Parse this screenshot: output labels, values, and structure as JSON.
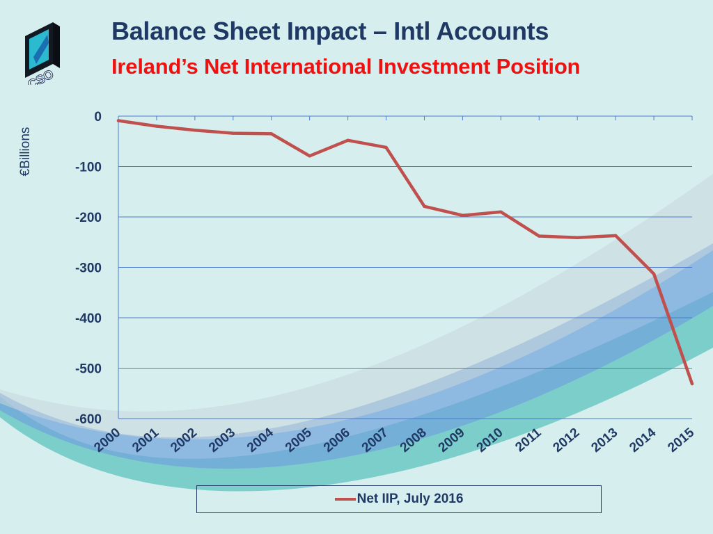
{
  "header": {
    "title": "Balance Sheet Impact – Intl Accounts",
    "subtitle": "Ireland’s Net International Investment Position"
  },
  "logo": {
    "text": "CSO",
    "icon": "cso-logo-icon"
  },
  "colors": {
    "title": "#1f3864",
    "subtitle": "#ee1111",
    "series": "#c0504d",
    "gridline": "#4a7bd0",
    "axis_text": "#1f3864"
  },
  "chart_data": {
    "type": "line",
    "title": "",
    "xlabel": "",
    "ylabel": "€Billions",
    "ylim": [
      -600,
      0
    ],
    "yticks": [
      0,
      -100,
      -200,
      -300,
      -400,
      -500,
      -600
    ],
    "grid": true,
    "legend_position": "bottom",
    "categories": [
      "2000",
      "2001",
      "2002",
      "2003",
      "2004",
      "2005",
      "2006",
      "2007",
      "2008",
      "2009",
      "2010",
      "2011",
      "2012",
      "2013",
      "2014",
      "2015"
    ],
    "series": [
      {
        "name": "Net IIP, July 2016",
        "values": [
          -9,
          -20,
          -28,
          -34,
          -35,
          -79,
          -48,
          -62,
          -179,
          -197,
          -190,
          -238,
          -241,
          -237,
          -313,
          -531
        ]
      }
    ]
  }
}
